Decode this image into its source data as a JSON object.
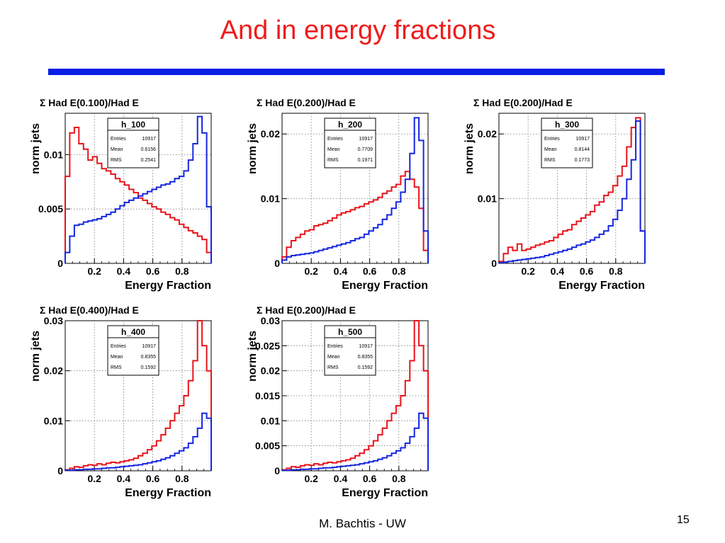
{
  "slide": {
    "title": "And in energy fractions",
    "author": "M. Bachtis - UW",
    "page": "15",
    "colors": {
      "title": "#ee1c1c",
      "rule": "#0a1ee6",
      "red_series": "#e8141a",
      "blue_series": "#1426e0"
    }
  },
  "chart_data": [
    {
      "type": "histogram",
      "title": "Σ Had E(0.100)/Had E",
      "xlabel": "Energy Fraction",
      "ylabel": "norm jets",
      "xlim": [
        0,
        1
      ],
      "ylim": [
        0,
        0.0138
      ],
      "xticks": [
        "0.2",
        "0.4",
        "0.6",
        "0.8"
      ],
      "yticks": [
        {
          "v": 0,
          "label": "0"
        },
        {
          "v": 0.005,
          "label": "0.005"
        },
        {
          "v": 0.01,
          "label": "0.01"
        }
      ],
      "grid": true,
      "stats": {
        "name": "h_100",
        "entries": "10917",
        "mean": "0.6156",
        "rms": "0.2541"
      },
      "series": [
        {
          "color": "#e8141a",
          "values": [
            0.008,
            0.012,
            0.0125,
            0.011,
            0.0105,
            0.0095,
            0.0098,
            0.0092,
            0.0087,
            0.0085,
            0.0082,
            0.0078,
            0.0075,
            0.0072,
            0.0068,
            0.0065,
            0.006,
            0.0058,
            0.0055,
            0.0052,
            0.005,
            0.0047,
            0.0045,
            0.0042,
            0.004,
            0.0036,
            0.0033,
            0.003,
            0.0028,
            0.0025,
            0.0022,
            0.001
          ]
        },
        {
          "color": "#1426e0",
          "values": [
            0.001,
            0.0025,
            0.0035,
            0.0036,
            0.0038,
            0.0039,
            0.004,
            0.0041,
            0.0043,
            0.0045,
            0.0047,
            0.005,
            0.0053,
            0.0056,
            0.0058,
            0.006,
            0.0062,
            0.0064,
            0.0066,
            0.0068,
            0.007,
            0.0072,
            0.0073,
            0.0075,
            0.0078,
            0.008,
            0.0085,
            0.0095,
            0.011,
            0.0135,
            0.012,
            0.0052
          ]
        }
      ]
    },
    {
      "type": "histogram",
      "title": "Σ Had E(0.200)/Had E",
      "xlabel": "Energy Fraction",
      "ylabel": "norm jets",
      "xlim": [
        0,
        1
      ],
      "ylim": [
        0,
        0.0232
      ],
      "xticks": [
        "0.2",
        "0.4",
        "0.6",
        "0.8"
      ],
      "yticks": [
        {
          "v": 0,
          "label": "0"
        },
        {
          "v": 0.01,
          "label": "0.01"
        },
        {
          "v": 0.02,
          "label": "0.02"
        }
      ],
      "grid": true,
      "stats": {
        "name": "h_200",
        "entries": "10917",
        "mean": "0.7709",
        "rms": "0.1971"
      },
      "series": [
        {
          "color": "#e8141a",
          "values": [
            0.001,
            0.0025,
            0.0035,
            0.004,
            0.0045,
            0.005,
            0.0052,
            0.0058,
            0.006,
            0.0062,
            0.0066,
            0.007,
            0.0075,
            0.0078,
            0.008,
            0.0083,
            0.0086,
            0.0088,
            0.0092,
            0.0095,
            0.0098,
            0.0102,
            0.0108,
            0.0112,
            0.0118,
            0.0122,
            0.0135,
            0.0142,
            0.013,
            0.0118,
            0.0085,
            0.002
          ]
        },
        {
          "color": "#1426e0",
          "values": [
            0.0005,
            0.001,
            0.0012,
            0.0013,
            0.0014,
            0.0015,
            0.0016,
            0.0018,
            0.002,
            0.0022,
            0.0024,
            0.0026,
            0.0028,
            0.003,
            0.0032,
            0.0035,
            0.0038,
            0.004,
            0.0045,
            0.005,
            0.0055,
            0.006,
            0.0068,
            0.0075,
            0.0085,
            0.0095,
            0.011,
            0.013,
            0.017,
            0.0225,
            0.019,
            0.005
          ]
        }
      ]
    },
    {
      "type": "histogram",
      "title": "Σ Had E(0.200)/Had E",
      "xlabel": "Energy Fraction",
      "ylabel": "norm jets",
      "xlim": [
        0,
        1
      ],
      "ylim": [
        0,
        0.0232
      ],
      "xticks": [
        "0.2",
        "0.4",
        "0.6",
        "0.8"
      ],
      "yticks": [
        {
          "v": 0,
          "label": "0"
        },
        {
          "v": 0.01,
          "label": "0.01"
        },
        {
          "v": 0.02,
          "label": "0.02"
        }
      ],
      "grid": true,
      "stats": {
        "name": "h_300",
        "entries": "10917",
        "mean": "0.8144",
        "rms": "0.1773"
      },
      "series": [
        {
          "color": "#e8141a",
          "values": [
            0.0003,
            0.0015,
            0.0025,
            0.002,
            0.003,
            0.002,
            0.0022,
            0.0025,
            0.0028,
            0.003,
            0.0033,
            0.0035,
            0.004,
            0.0045,
            0.005,
            0.0052,
            0.006,
            0.0065,
            0.007,
            0.0075,
            0.008,
            0.009,
            0.0095,
            0.0105,
            0.011,
            0.012,
            0.0135,
            0.015,
            0.018,
            0.021,
            0.0225,
            0.005
          ]
        },
        {
          "color": "#1426e0",
          "values": [
            0.0001,
            0.0002,
            0.0003,
            0.0004,
            0.0005,
            0.0006,
            0.0007,
            0.0008,
            0.0009,
            0.001,
            0.0012,
            0.0014,
            0.0016,
            0.0018,
            0.002,
            0.0022,
            0.0025,
            0.0028,
            0.003,
            0.0033,
            0.0036,
            0.004,
            0.0045,
            0.005,
            0.0058,
            0.0068,
            0.0082,
            0.01,
            0.013,
            0.016,
            0.022,
            0.005
          ]
        }
      ]
    },
    {
      "type": "histogram",
      "title": "Σ Had E(0.400)/Had E",
      "xlabel": "Energy Fraction",
      "ylabel": "norm jets",
      "xlim": [
        0,
        1
      ],
      "ylim": [
        0,
        0.03
      ],
      "xticks": [
        "0.2",
        "0.4",
        "0.6",
        "0.8"
      ],
      "yticks": [
        {
          "v": 0,
          "label": "0"
        },
        {
          "v": 0.01,
          "label": "0.01"
        },
        {
          "v": 0.02,
          "label": "0.02"
        },
        {
          "v": 0.03,
          "label": "0.03"
        }
      ],
      "grid": true,
      "stats": {
        "name": "h_400",
        "entries": "10917",
        "mean": "0.8355",
        "rms": "0.1592"
      },
      "series": [
        {
          "color": "#e8141a",
          "values": [
            0.0002,
            0.0005,
            0.0008,
            0.0007,
            0.001,
            0.0012,
            0.0011,
            0.0014,
            0.0012,
            0.0015,
            0.0017,
            0.0016,
            0.0018,
            0.002,
            0.0022,
            0.0025,
            0.003,
            0.0035,
            0.0042,
            0.005,
            0.006,
            0.0072,
            0.0085,
            0.01,
            0.0115,
            0.013,
            0.015,
            0.018,
            0.022,
            0.03,
            0.025,
            0.02
          ]
        },
        {
          "color": "#1426e0",
          "values": [
            0.0001,
            0.0001,
            0.0002,
            0.0002,
            0.0003,
            0.0003,
            0.0004,
            0.0004,
            0.0005,
            0.0006,
            0.0006,
            0.0007,
            0.0008,
            0.0009,
            0.001,
            0.0011,
            0.0012,
            0.0014,
            0.0016,
            0.0018,
            0.002,
            0.0023,
            0.0026,
            0.003,
            0.0035,
            0.004,
            0.0046,
            0.0055,
            0.0068,
            0.0085,
            0.0115,
            0.0105
          ]
        }
      ]
    },
    {
      "type": "histogram",
      "title": "Σ Had E(0.200)/Had E",
      "xlabel": "Energy Fraction",
      "ylabel": "norm jets",
      "xlim": [
        0,
        1
      ],
      "ylim": [
        0,
        0.03
      ],
      "xticks": [
        "0.2",
        "0.4",
        "0.6",
        "0.8"
      ],
      "yticks": [
        {
          "v": 0,
          "label": "0"
        },
        {
          "v": 0.005,
          "label": "0.005"
        },
        {
          "v": 0.01,
          "label": "0.01"
        },
        {
          "v": 0.015,
          "label": "0.015"
        },
        {
          "v": 0.02,
          "label": "0.02"
        },
        {
          "v": 0.025,
          "label": "0.025"
        },
        {
          "v": 0.03,
          "label": "0.03"
        }
      ],
      "grid": true,
      "stats": {
        "name": "h_500",
        "entries": "10917",
        "mean": "0.8355",
        "rms": "0.1592"
      },
      "series": [
        {
          "color": "#e8141a",
          "values": [
            0.0002,
            0.0005,
            0.0008,
            0.0007,
            0.001,
            0.0012,
            0.0011,
            0.0014,
            0.0012,
            0.0015,
            0.0017,
            0.0016,
            0.0018,
            0.002,
            0.0022,
            0.0025,
            0.003,
            0.0035,
            0.0042,
            0.005,
            0.006,
            0.0072,
            0.0085,
            0.01,
            0.0115,
            0.013,
            0.015,
            0.018,
            0.022,
            0.03,
            0.025,
            0.02
          ]
        },
        {
          "color": "#1426e0",
          "values": [
            0.0001,
            0.0001,
            0.0002,
            0.0002,
            0.0003,
            0.0003,
            0.0004,
            0.0004,
            0.0005,
            0.0006,
            0.0006,
            0.0007,
            0.0008,
            0.0009,
            0.001,
            0.0011,
            0.0012,
            0.0014,
            0.0016,
            0.0018,
            0.002,
            0.0023,
            0.0026,
            0.003,
            0.0035,
            0.004,
            0.0046,
            0.0055,
            0.0068,
            0.0085,
            0.0115,
            0.0105
          ]
        }
      ]
    }
  ]
}
